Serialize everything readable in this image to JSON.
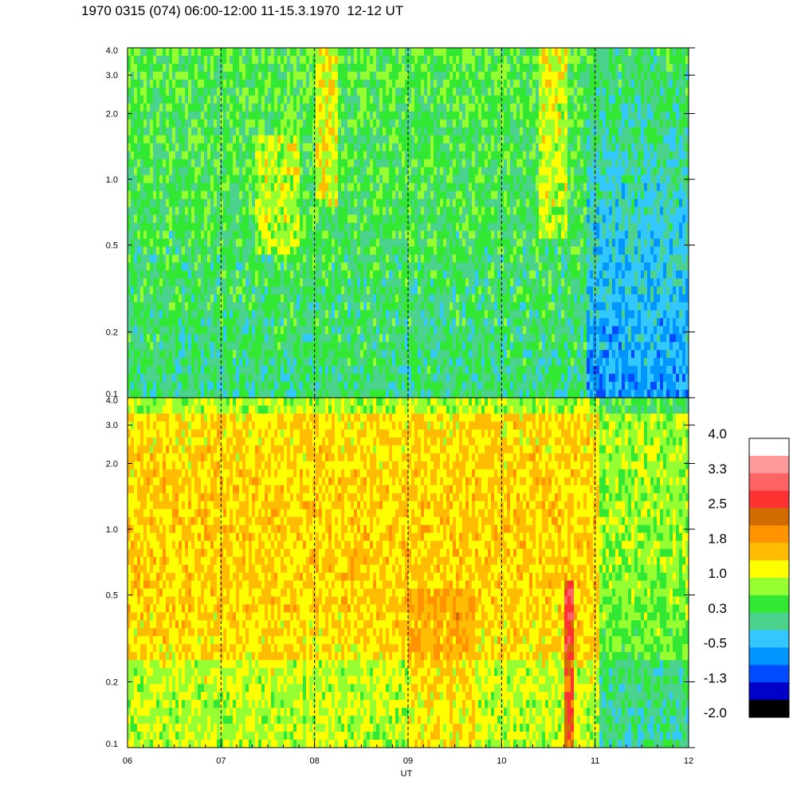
{
  "title": "1970 0315 (074) 06:00-12:00 11-15.3.1970  12-12 UT",
  "chart_data": {
    "type": "heatmap",
    "title": "1970 0315 (074) 06:00-12:00 11-15.3.1970  12-12 UT",
    "xlabel": "UT",
    "x_ticks": [
      "06",
      "07",
      "08",
      "09",
      "10",
      "11",
      "12"
    ],
    "xlim": [
      6,
      12
    ],
    "y_scale": "log",
    "grid": "dashed vertical lines at each hour",
    "panels": [
      {
        "name": "",
        "ylim": [
          0.1,
          4.0
        ],
        "y_ticks": [
          "0.1",
          "0.2",
          "0.5",
          "1.0",
          "2.0",
          "3.0",
          "4.0"
        ],
        "dominant_levels": "green to cyan (about -0.5 to 0.3), yellow-orange streaks, blue region after 10:50 UT"
      },
      {
        "name": "",
        "ylim": [
          0.1,
          4.0
        ],
        "y_ticks": [
          "0.1",
          "0.2",
          "0.5",
          "1.0",
          "2.0",
          "3.0",
          "4.0"
        ],
        "dominant_levels": "yellow to orange (about 1.0 to 1.8), green after 11 UT, red streak near 10:45 UT"
      }
    ],
    "colorbar": {
      "labels": [
        "4.0",
        "3.3",
        "2.5",
        "1.8",
        "1.0",
        "0.3",
        "-0.5",
        "-1.3",
        "-2.0"
      ],
      "colors": [
        "#ffffff",
        "#ff9a9a",
        "#ff6464",
        "#ff3232",
        "#d26c00",
        "#ff9400",
        "#ffbc00",
        "#ffff00",
        "#96ff32",
        "#32e832",
        "#4bd28c",
        "#32c8ff",
        "#0096ff",
        "#004bff",
        "#0000c8",
        "#000000"
      ]
    }
  }
}
